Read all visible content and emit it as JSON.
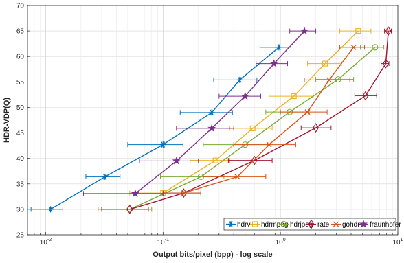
{
  "chart_data": {
    "type": "line",
    "xlabel": "Output bits/pixel (bpp) - log scale",
    "ylabel": "HDR-VDP(Q)",
    "xscale": "log",
    "xlim": [
      0.007,
      10
    ],
    "ylim": [
      25,
      70
    ],
    "grid": true,
    "legend_position": "bottom-right",
    "y_ticks": [
      "25",
      "30",
      "35",
      "40",
      "45",
      "50",
      "55",
      "60",
      "65",
      "70"
    ],
    "x_major_ticks": [
      {
        "value": 0.01,
        "base": "10",
        "exp": "-2"
      },
      {
        "value": 0.1,
        "base": "10",
        "exp": "-1"
      },
      {
        "value": 1,
        "base": "10",
        "exp": "0"
      },
      {
        "value": 10,
        "base": "10",
        "exp": "1"
      }
    ],
    "series": [
      {
        "name": "hdrv",
        "color": "#0072BD",
        "marker": "asterisk",
        "points": [
          {
            "x": 0.011,
            "y": 30.0,
            "xmin": 0.0075,
            "xmax": 0.014
          },
          {
            "x": 0.032,
            "y": 36.4,
            "xmin": 0.022,
            "xmax": 0.043
          },
          {
            "x": 0.1,
            "y": 42.7,
            "xmin": 0.05,
            "xmax": 0.148
          },
          {
            "x": 0.26,
            "y": 49.0,
            "xmin": 0.14,
            "xmax": 0.39
          },
          {
            "x": 0.45,
            "y": 55.4,
            "xmin": 0.27,
            "xmax": 0.63
          },
          {
            "x": 0.97,
            "y": 61.8,
            "xmin": 0.67,
            "xmax": 1.23
          }
        ]
      },
      {
        "name": "hdrmpeg",
        "color": "#EDB120",
        "marker": "square",
        "points": [
          {
            "x": 0.1,
            "y": 33.2,
            "xmin": 0.052,
            "xmax": 0.15
          },
          {
            "x": 0.28,
            "y": 39.6,
            "xmin": 0.17,
            "xmax": 0.37
          },
          {
            "x": 0.58,
            "y": 45.9,
            "xmin": 0.37,
            "xmax": 0.85
          },
          {
            "x": 1.3,
            "y": 52.2,
            "xmin": 0.8,
            "xmax": 1.9
          },
          {
            "x": 2.4,
            "y": 58.6,
            "xmin": 1.7,
            "xmax": 3.3
          },
          {
            "x": 4.6,
            "y": 65.0,
            "xmin": 3.2,
            "xmax": 5.9
          }
        ]
      },
      {
        "name": "hdrjpeg",
        "color": "#77AC30",
        "marker": "circle",
        "points": [
          {
            "x": 0.052,
            "y": 30.0,
            "xmin": 0.028,
            "xmax": 0.08
          },
          {
            "x": 0.21,
            "y": 36.4,
            "xmin": 0.095,
            "xmax": 0.33
          },
          {
            "x": 0.5,
            "y": 42.7,
            "xmin": 0.22,
            "xmax": 0.78
          },
          {
            "x": 1.2,
            "y": 49.1,
            "xmin": 0.75,
            "xmax": 1.75
          },
          {
            "x": 3.1,
            "y": 55.5,
            "xmin": 2.0,
            "xmax": 4.2
          },
          {
            "x": 6.4,
            "y": 61.8,
            "xmin": 4.8,
            "xmax": 7.6
          }
        ]
      },
      {
        "name": "rate",
        "color": "#A2142F",
        "marker": "diamond",
        "points": [
          {
            "x": 0.052,
            "y": 30.0,
            "xmin": 0.03,
            "xmax": 0.075
          },
          {
            "x": 0.15,
            "y": 33.2,
            "xmin": 0.1,
            "xmax": 0.21
          },
          {
            "x": 0.6,
            "y": 39.6,
            "xmin": 0.36,
            "xmax": 0.85
          },
          {
            "x": 2.0,
            "y": 46.0,
            "xmin": 1.5,
            "xmax": 2.7
          },
          {
            "x": 5.3,
            "y": 52.3,
            "xmin": 4.3,
            "xmax": 6.6
          },
          {
            "x": 7.9,
            "y": 58.6,
            "xmin": 7.2,
            "xmax": 8.4
          },
          {
            "x": 8.3,
            "y": 65.0,
            "xmin": 7.7,
            "xmax": 8.8
          }
        ]
      },
      {
        "name": "gohdr",
        "color": "#D95319",
        "marker": "x",
        "points": [
          {
            "x": 0.15,
            "y": 33.2,
            "xmin": 0.1,
            "xmax": 0.21
          },
          {
            "x": 0.43,
            "y": 36.4,
            "xmin": 0.22,
            "xmax": 0.75
          },
          {
            "x": 0.8,
            "y": 42.7,
            "xmin": 0.4,
            "xmax": 1.35
          },
          {
            "x": 1.7,
            "y": 49.1,
            "xmin": 1.0,
            "xmax": 2.5
          },
          {
            "x": 2.6,
            "y": 55.4,
            "xmin": 1.6,
            "xmax": 3.9
          },
          {
            "x": 4.2,
            "y": 61.8,
            "xmin": 3.2,
            "xmax": 5.2
          }
        ]
      },
      {
        "name": "fraunhofer",
        "color": "#7E2F8E",
        "marker": "pentagram",
        "points": [
          {
            "x": 0.058,
            "y": 33.1,
            "xmin": 0.021,
            "xmax": 0.1
          },
          {
            "x": 0.13,
            "y": 39.5,
            "xmin": 0.063,
            "xmax": 0.2
          },
          {
            "x": 0.26,
            "y": 45.9,
            "xmin": 0.13,
            "xmax": 0.4
          },
          {
            "x": 0.5,
            "y": 52.2,
            "xmin": 0.3,
            "xmax": 0.68
          },
          {
            "x": 0.88,
            "y": 58.6,
            "xmin": 0.62,
            "xmax": 1.15
          },
          {
            "x": 1.6,
            "y": 65.0,
            "xmin": 1.2,
            "xmax": 2.0
          }
        ]
      }
    ]
  }
}
